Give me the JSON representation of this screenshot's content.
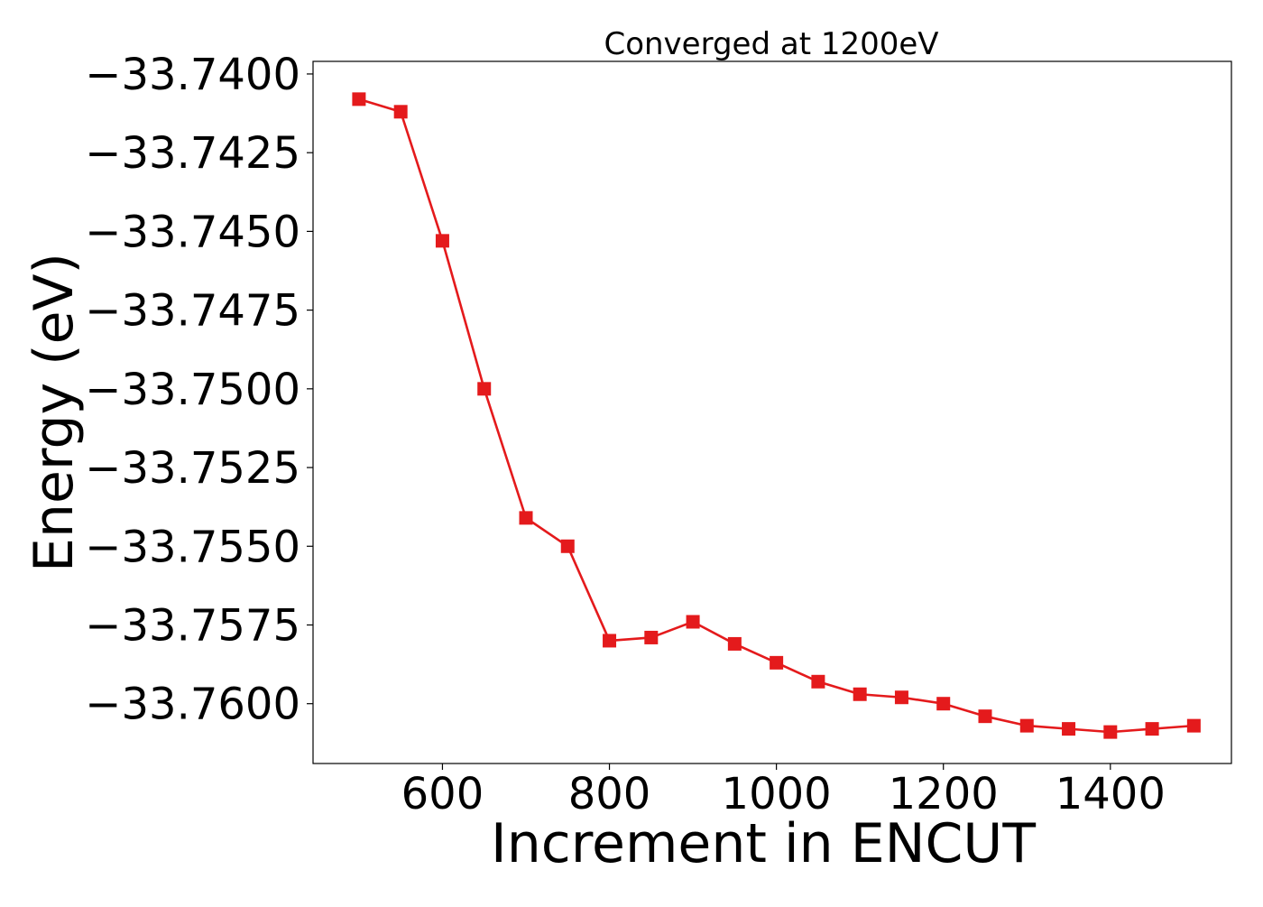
{
  "chart_data": {
    "type": "line",
    "title": "Converged at 1200eV",
    "xlabel": "Increment in ENCUT",
    "ylabel": "Energy (eV)",
    "xlim": [
      445,
      1545
    ],
    "ylim": [
      -33.7619,
      -33.7396
    ],
    "x_ticks": [
      600,
      800,
      1000,
      1200,
      1400
    ],
    "x_tick_labels": [
      "600",
      "800",
      "1000",
      "1200",
      "1400"
    ],
    "y_ticks": [
      -33.74,
      -33.7425,
      -33.745,
      -33.7475,
      -33.75,
      -33.7525,
      -33.755,
      -33.7575,
      -33.76
    ],
    "y_tick_labels": [
      "−33.7400",
      "−33.7425",
      "−33.7450",
      "−33.7475",
      "−33.7500",
      "−33.7525",
      "−33.7550",
      "−33.7575",
      "−33.7600"
    ],
    "grid": false,
    "legend": "none",
    "series": [
      {
        "color": "#e41a1c",
        "marker": "square",
        "x": [
          500,
          550,
          600,
          650,
          700,
          750,
          800,
          850,
          900,
          950,
          1000,
          1050,
          1100,
          1150,
          1200,
          1250,
          1300,
          1350,
          1400,
          1450,
          1500
        ],
        "values": [
          -33.7408,
          -33.7412,
          -33.7453,
          -33.75,
          -33.7541,
          -33.755,
          -33.758,
          -33.7579,
          -33.7574,
          -33.7581,
          -33.7587,
          -33.7593,
          -33.7597,
          -33.7598,
          -33.76,
          -33.7604,
          -33.7607,
          -33.7608,
          -33.7609,
          -33.7608,
          -33.7607
        ]
      }
    ]
  }
}
